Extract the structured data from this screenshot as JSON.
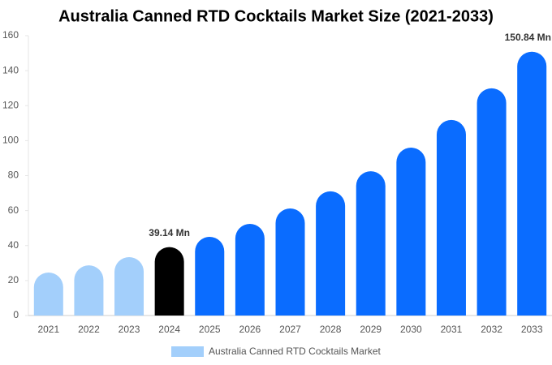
{
  "chart_data": {
    "type": "bar",
    "title": "Australia Canned RTD Cocktails Market Size (2021-2033)",
    "categories": [
      "2021",
      "2022",
      "2023",
      "2024",
      "2025",
      "2026",
      "2027",
      "2028",
      "2029",
      "2030",
      "2031",
      "2032",
      "2033"
    ],
    "series": [
      {
        "name": "Australia Canned RTD Cocktails Market",
        "color": "#a3cffb",
        "bar_colors": [
          "#a3cffb",
          "#a3cffb",
          "#a3cffb",
          "#000000",
          "#0a6cff",
          "#0a6cff",
          "#0a6cff",
          "#0a6cff",
          "#0a6cff",
          "#0a6cff",
          "#0a6cff",
          "#0a6cff",
          "#0a6cff"
        ],
        "values": [
          24.6,
          28.7,
          33.4,
          39.14,
          45,
          52.4,
          61.2,
          71,
          82.5,
          96,
          111.8,
          129.9,
          150.84
        ],
        "value_labels": [
          null,
          null,
          null,
          "39.14 Mn",
          null,
          null,
          null,
          null,
          null,
          null,
          null,
          null,
          "150.84 Mn"
        ]
      }
    ],
    "ylim": [
      0,
      160
    ],
    "yticks": [
      0,
      20,
      40,
      60,
      80,
      100,
      120,
      140,
      160
    ],
    "grid": false
  }
}
